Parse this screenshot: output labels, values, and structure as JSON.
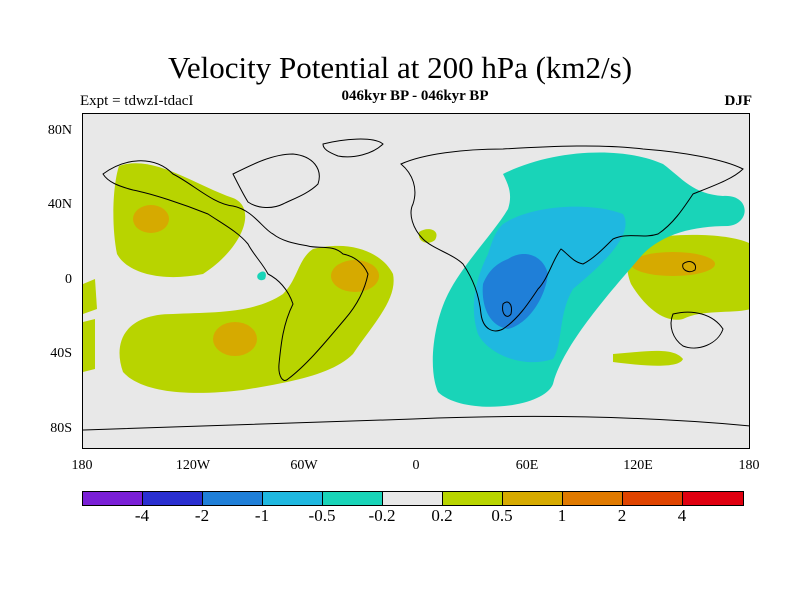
{
  "title": "Velocity Potential at 200 hPa (km2/s)",
  "subtitle": "046kyr BP - 046kyr BP",
  "left_label": "Expt = tdwzI-tdacI",
  "right_label": "DJF",
  "map": {
    "projection": "cylindrical equidistant",
    "lat_ticks": [
      "80N",
      "40N",
      "0",
      "40S",
      "80S"
    ],
    "lon_ticks": [
      "180",
      "120W",
      "60W",
      "0",
      "60E",
      "120E",
      "180"
    ],
    "background_color": "#e8e8e8"
  },
  "colorbar": {
    "colors": [
      "#7a1fd6",
      "#2a2fd0",
      "#1f7fd8",
      "#1fb8e0",
      "#19d4b8",
      "#e8e8e8",
      "#b8d400",
      "#d6aa00",
      "#e07a00",
      "#e04400",
      "#e00010"
    ],
    "labels": [
      "-4",
      "-2",
      "-1",
      "-0.5",
      "-0.2",
      "0.2",
      "0.5",
      "1",
      "2",
      "4"
    ]
  }
}
